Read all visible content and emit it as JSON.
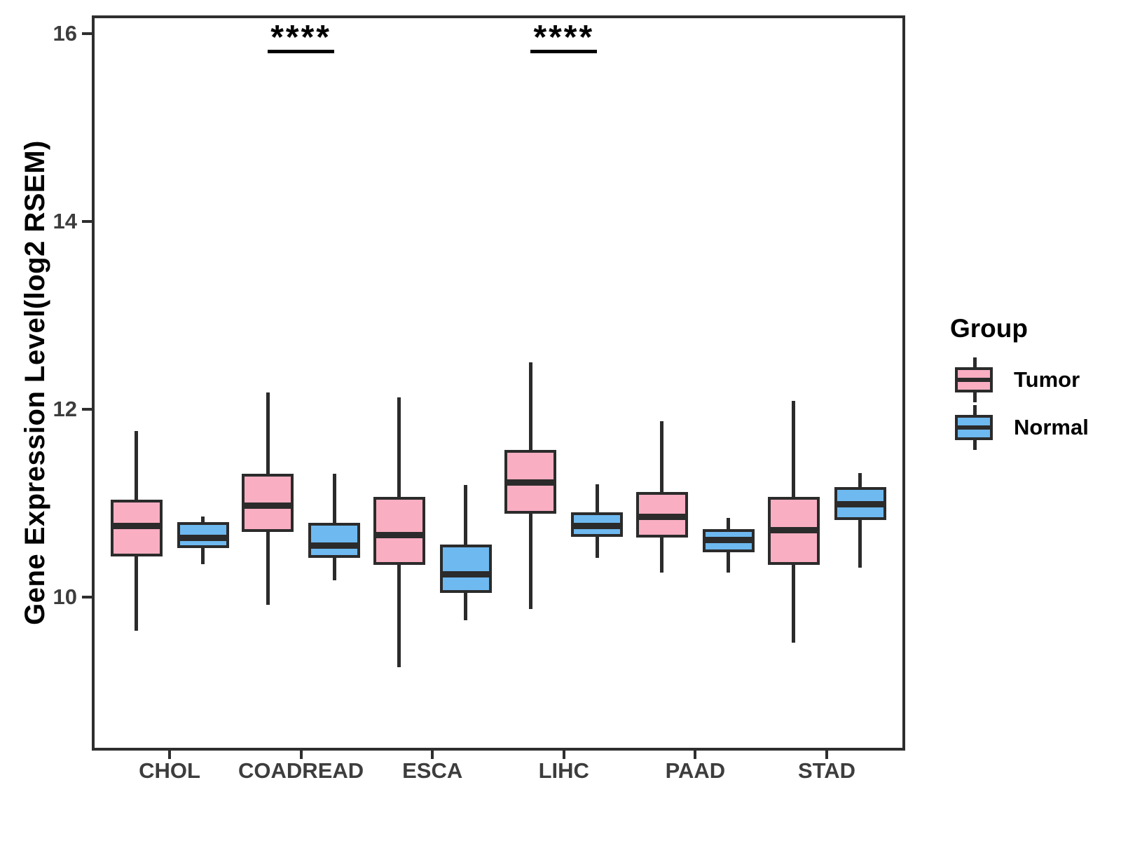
{
  "chart_data": {
    "type": "boxplot",
    "title": "",
    "xlabel": "",
    "ylabel": "Gene Expression Level(log2 RSEM)",
    "yticks": [
      16,
      14,
      12,
      10
    ],
    "ylim": [
      8.4,
      16.2
    ],
    "grid": false,
    "legend_position": "right",
    "categories": [
      "CHOL",
      "COADREAD",
      "ESCA",
      "LIHC",
      "PAAD",
      "STAD"
    ],
    "series": [
      {
        "name": "Tumor",
        "fill": "#FAAEC2",
        "boxes": [
          {
            "category": "CHOL",
            "min": 9.64,
            "q1": 10.43,
            "median": 10.76,
            "q3": 11.04,
            "max": 11.77
          },
          {
            "category": "COADREAD",
            "min": 9.92,
            "q1": 10.69,
            "median": 10.97,
            "q3": 11.31,
            "max": 12.18
          },
          {
            "category": "ESCA",
            "min": 9.25,
            "q1": 10.34,
            "median": 10.66,
            "q3": 11.07,
            "max": 12.13
          },
          {
            "category": "LIHC",
            "min": 9.87,
            "q1": 10.89,
            "median": 11.22,
            "q3": 11.57,
            "max": 12.5
          },
          {
            "category": "PAAD",
            "min": 10.26,
            "q1": 10.63,
            "median": 10.85,
            "q3": 11.12,
            "max": 11.87
          },
          {
            "category": "STAD",
            "min": 9.51,
            "q1": 10.34,
            "median": 10.71,
            "q3": 11.07,
            "max": 12.09
          }
        ]
      },
      {
        "name": "Normal",
        "fill": "#6EB9F0",
        "boxes": [
          {
            "category": "CHOL",
            "min": 10.35,
            "q1": 10.52,
            "median": 10.63,
            "q3": 10.8,
            "max": 10.86
          },
          {
            "category": "COADREAD",
            "min": 10.18,
            "q1": 10.42,
            "median": 10.55,
            "q3": 10.79,
            "max": 11.31
          },
          {
            "category": "ESCA",
            "min": 9.75,
            "q1": 10.04,
            "median": 10.24,
            "q3": 10.56,
            "max": 11.19
          },
          {
            "category": "LIHC",
            "min": 10.42,
            "q1": 10.64,
            "median": 10.76,
            "q3": 10.9,
            "max": 11.2
          },
          {
            "category": "PAAD",
            "min": 10.26,
            "q1": 10.48,
            "median": 10.61,
            "q3": 10.72,
            "max": 10.84
          },
          {
            "category": "STAD",
            "min": 10.31,
            "q1": 10.82,
            "median": 10.99,
            "q3": 11.17,
            "max": 11.32
          }
        ]
      }
    ],
    "significance": [
      {
        "category": "COADREAD",
        "label": "****"
      },
      {
        "category": "LIHC",
        "label": "****"
      }
    ],
    "legend": {
      "title": "Group",
      "items": [
        "Tumor",
        "Normal"
      ]
    }
  }
}
